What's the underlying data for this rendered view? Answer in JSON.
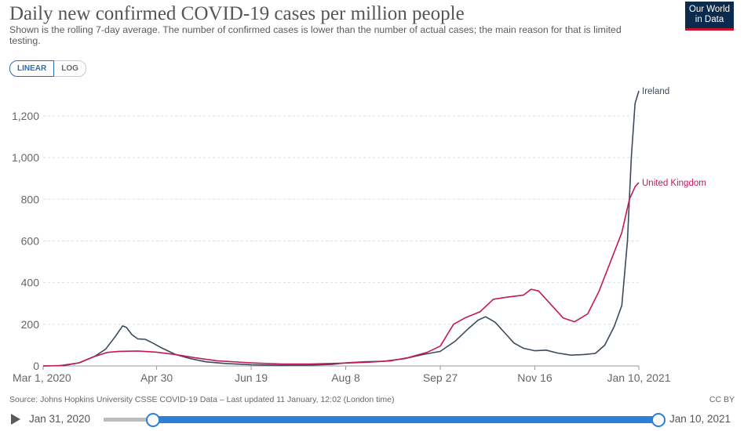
{
  "header": {
    "title": "Daily new confirmed COVID-19 cases per million people",
    "subtitle": "Shown is the rolling 7-day average. The number of confirmed cases is lower than the number of actual cases; the main reason for that is limited testing.",
    "logo_line1": "Our World",
    "logo_line2": "in Data"
  },
  "toggles": {
    "linear": "LINEAR",
    "log": "LOG",
    "selected": "linear"
  },
  "footer": {
    "source": "Source: Johns Hopkins University CSSE COVID-19 Data – Last updated 11 January, 12:02 (London time)",
    "license": "CC BY"
  },
  "timeline": {
    "start": "Jan 31, 2020",
    "end": "Jan 10, 2021"
  },
  "colors": {
    "ireland": "#3b4a5e",
    "uk": "#c2185b",
    "grid": "#dddddd",
    "axis": "#999999",
    "accent": "#2b7fd6"
  },
  "chart_data": {
    "type": "line",
    "title": "Daily new confirmed COVID-19 cases per million people",
    "x_start": "2020-03-01",
    "x_end": "2021-01-10",
    "ylim": [
      0,
      1320
    ],
    "y_ticks": [
      0,
      200,
      400,
      600,
      800,
      1000,
      1200
    ],
    "y_tick_labels": [
      "0",
      "200",
      "400",
      "600",
      "800",
      "1,000",
      "1,200"
    ],
    "x_ticks": [
      "2020-03-01",
      "2020-04-30",
      "2020-06-19",
      "2020-08-08",
      "2020-09-27",
      "2020-11-16",
      "2021-01-10"
    ],
    "x_tick_labels": [
      "Mar 1, 2020",
      "Apr 30",
      "Jun 19",
      "Aug 8",
      "Sep 27",
      "Nov 16",
      "Jan 10, 2021"
    ],
    "grid": "horizontal-dashed",
    "series": [
      {
        "name": "Ireland",
        "color": "#3b4a5e",
        "points": [
          [
            "2020-03-01",
            0
          ],
          [
            "2020-03-12",
            2
          ],
          [
            "2020-03-20",
            15
          ],
          [
            "2020-03-28",
            45
          ],
          [
            "2020-04-03",
            80
          ],
          [
            "2020-04-08",
            140
          ],
          [
            "2020-04-12",
            192
          ],
          [
            "2020-04-14",
            185
          ],
          [
            "2020-04-17",
            150
          ],
          [
            "2020-04-20",
            130
          ],
          [
            "2020-04-24",
            128
          ],
          [
            "2020-04-28",
            110
          ],
          [
            "2020-05-03",
            85
          ],
          [
            "2020-05-10",
            55
          ],
          [
            "2020-05-18",
            35
          ],
          [
            "2020-05-26",
            20
          ],
          [
            "2020-06-05",
            12
          ],
          [
            "2020-06-19",
            6
          ],
          [
            "2020-07-05",
            3
          ],
          [
            "2020-07-20",
            4
          ],
          [
            "2020-08-01",
            8
          ],
          [
            "2020-08-08",
            15
          ],
          [
            "2020-08-18",
            20
          ],
          [
            "2020-08-28",
            22
          ],
          [
            "2020-09-08",
            35
          ],
          [
            "2020-09-18",
            55
          ],
          [
            "2020-09-27",
            70
          ],
          [
            "2020-10-05",
            120
          ],
          [
            "2020-10-12",
            180
          ],
          [
            "2020-10-17",
            220
          ],
          [
            "2020-10-21",
            236
          ],
          [
            "2020-10-26",
            210
          ],
          [
            "2020-10-31",
            160
          ],
          [
            "2020-11-05",
            110
          ],
          [
            "2020-11-10",
            85
          ],
          [
            "2020-11-16",
            73
          ],
          [
            "2020-11-22",
            76
          ],
          [
            "2020-11-28",
            62
          ],
          [
            "2020-12-05",
            52
          ],
          [
            "2020-12-12",
            55
          ],
          [
            "2020-12-18",
            60
          ],
          [
            "2020-12-23",
            100
          ],
          [
            "2020-12-28",
            190
          ],
          [
            "2021-01-01",
            290
          ],
          [
            "2021-01-04",
            600
          ],
          [
            "2021-01-06",
            1000
          ],
          [
            "2021-01-08",
            1260
          ],
          [
            "2021-01-10",
            1320
          ]
        ]
      },
      {
        "name": "United Kingdom",
        "color": "#c2185b",
        "points": [
          [
            "2020-03-01",
            0
          ],
          [
            "2020-03-10",
            2
          ],
          [
            "2020-03-20",
            15
          ],
          [
            "2020-03-28",
            45
          ],
          [
            "2020-04-04",
            65
          ],
          [
            "2020-04-10",
            70
          ],
          [
            "2020-04-20",
            72
          ],
          [
            "2020-04-30",
            66
          ],
          [
            "2020-05-10",
            55
          ],
          [
            "2020-05-20",
            40
          ],
          [
            "2020-06-01",
            25
          ],
          [
            "2020-06-19",
            15
          ],
          [
            "2020-07-05",
            9
          ],
          [
            "2020-07-20",
            9
          ],
          [
            "2020-08-08",
            14
          ],
          [
            "2020-08-20",
            18
          ],
          [
            "2020-09-01",
            25
          ],
          [
            "2020-09-10",
            40
          ],
          [
            "2020-09-20",
            65
          ],
          [
            "2020-09-27",
            95
          ],
          [
            "2020-10-04",
            200
          ],
          [
            "2020-10-10",
            230
          ],
          [
            "2020-10-18",
            260
          ],
          [
            "2020-10-25",
            320
          ],
          [
            "2020-11-01",
            330
          ],
          [
            "2020-11-10",
            340
          ],
          [
            "2020-11-14",
            368
          ],
          [
            "2020-11-18",
            360
          ],
          [
            "2020-11-25",
            290
          ],
          [
            "2020-12-01",
            230
          ],
          [
            "2020-12-07",
            212
          ],
          [
            "2020-12-14",
            250
          ],
          [
            "2020-12-20",
            360
          ],
          [
            "2020-12-26",
            500
          ],
          [
            "2021-01-01",
            640
          ],
          [
            "2021-01-05",
            800
          ],
          [
            "2021-01-08",
            860
          ],
          [
            "2021-01-10",
            880
          ]
        ]
      }
    ]
  }
}
